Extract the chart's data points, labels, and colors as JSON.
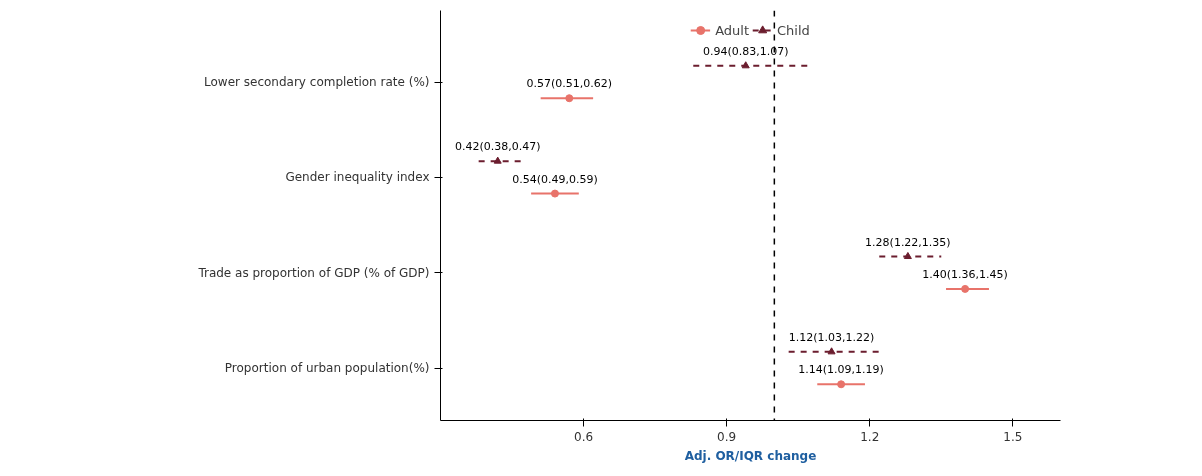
{
  "chart_data": {
    "type": "scatter",
    "orientation": "horizontal",
    "xlabel": "Adj. OR/IQR change",
    "categories": [
      "Lower secondary completion rate (%)",
      "Gender inequality index",
      "Trade as proportion of GDP (% of GDP)",
      "Proportion of urban population(%)"
    ],
    "series": [
      {
        "name": "Adult",
        "color": "#e8736a",
        "marker": "circle",
        "line_style": "solid",
        "values": [
          0.57,
          0.54,
          1.4,
          1.14
        ],
        "errors": [
          [
            0.51,
            0.62
          ],
          [
            0.49,
            0.59
          ],
          [
            1.36,
            1.45
          ],
          [
            1.09,
            1.19
          ]
        ],
        "value_labels": [
          "0.57(0.51,0.62)",
          "0.54(0.49,0.59)",
          "1.40(1.36,1.45)",
          "1.14(1.09,1.19)"
        ]
      },
      {
        "name": "Child",
        "color": "#6b1d2e",
        "marker": "triangle",
        "line_style": "dashed",
        "values": [
          0.94,
          0.42,
          1.28,
          1.12
        ],
        "errors": [
          [
            0.83,
            1.07
          ],
          [
            0.38,
            0.47
          ],
          [
            1.22,
            1.35
          ],
          [
            1.03,
            1.22
          ]
        ],
        "value_labels": [
          "0.94(0.83,1.07)",
          "0.42(0.38,0.47)",
          "1.28(1.22,1.35)",
          "1.12(1.03,1.22)"
        ]
      }
    ],
    "xlim": [
      0.3,
      1.6
    ],
    "xticks": [
      0.6,
      0.9,
      1.2,
      1.5
    ],
    "ref_lines": [
      {
        "axis": "x",
        "value": 1.0,
        "color": "#000000",
        "line_style": "dashed"
      }
    ],
    "legend": "top",
    "grid": false
  }
}
